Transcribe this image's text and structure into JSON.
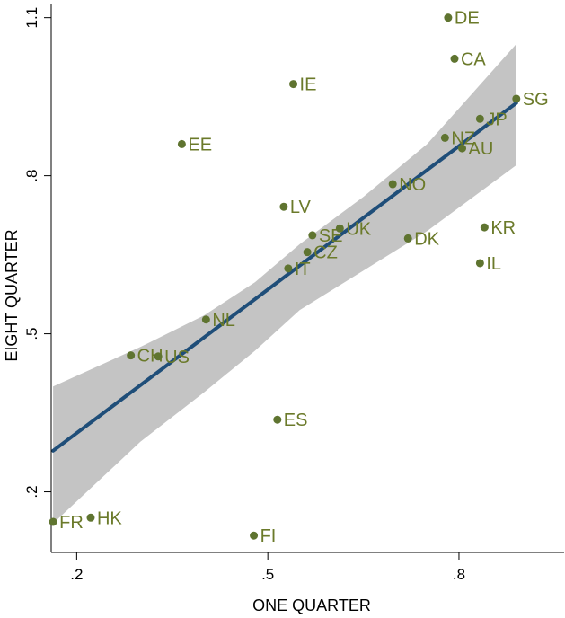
{
  "chart_data": {
    "type": "scatter",
    "xlabel": "ONE QUARTER",
    "ylabel": "EIGHT QUARTER",
    "xlim": [
      0.16,
      0.965
    ],
    "ylim": [
      0.085,
      1.125
    ],
    "x_ticks": [
      {
        "value": 0.2,
        "label": ".2"
      },
      {
        "value": 0.5,
        "label": ".5"
      },
      {
        "value": 0.8,
        "label": ".8"
      }
    ],
    "y_ticks": [
      {
        "value": 0.2,
        "label": ".2"
      },
      {
        "value": 0.5,
        "label": ".5"
      },
      {
        "value": 0.8,
        "label": ".8"
      },
      {
        "value": 1.1,
        "label": "1.1"
      }
    ],
    "grid": false,
    "points": [
      {
        "label": "DE",
        "x": 0.783,
        "y": 1.1
      },
      {
        "label": "CA",
        "x": 0.793,
        "y": 1.022
      },
      {
        "label": "IE",
        "x": 0.54,
        "y": 0.974
      },
      {
        "label": "SG",
        "x": 0.89,
        "y": 0.946
      },
      {
        "label": "JP",
        "x": 0.833,
        "y": 0.908
      },
      {
        "label": "NZ",
        "x": 0.778,
        "y": 0.872
      },
      {
        "label": "AU",
        "x": 0.805,
        "y": 0.852
      },
      {
        "label": "EE",
        "x": 0.365,
        "y": 0.86
      },
      {
        "label": "NO",
        "x": 0.696,
        "y": 0.784
      },
      {
        "label": "LV",
        "x": 0.525,
        "y": 0.741
      },
      {
        "label": "SE",
        "x": 0.57,
        "y": 0.687
      },
      {
        "label": "UK",
        "x": 0.613,
        "y": 0.7
      },
      {
        "label": "CZ",
        "x": 0.562,
        "y": 0.655
      },
      {
        "label": "IT",
        "x": 0.532,
        "y": 0.624
      },
      {
        "label": "DK",
        "x": 0.72,
        "y": 0.681
      },
      {
        "label": "KR",
        "x": 0.84,
        "y": 0.702
      },
      {
        "label": "IL",
        "x": 0.833,
        "y": 0.634
      },
      {
        "label": "NL",
        "x": 0.403,
        "y": 0.527
      },
      {
        "label": "CH",
        "x": 0.285,
        "y": 0.459
      },
      {
        "label": "US",
        "x": 0.328,
        "y": 0.457
      },
      {
        "label": "ES",
        "x": 0.515,
        "y": 0.337
      },
      {
        "label": "FR",
        "x": 0.163,
        "y": 0.143
      },
      {
        "label": "HK",
        "x": 0.222,
        "y": 0.151
      },
      {
        "label": "FI",
        "x": 0.478,
        "y": 0.117
      }
    ],
    "fit_line": {
      "x": [
        0.163,
        0.89
      ],
      "y": [
        0.278,
        0.938
      ]
    },
    "confidence_band": {
      "x": [
        0.163,
        0.3,
        0.4,
        0.48,
        0.55,
        0.65,
        0.75,
        0.89
      ],
      "upper": [
        0.4,
        0.475,
        0.535,
        0.598,
        0.67,
        0.76,
        0.86,
        1.05
      ],
      "lower": [
        0.14,
        0.295,
        0.389,
        0.468,
        0.545,
        0.62,
        0.695,
        0.82
      ]
    },
    "colors": {
      "marker": "#5f7430",
      "label": "#6b7a2a",
      "fit_line": "#1f4e79",
      "band": "#c4c4c4"
    }
  }
}
